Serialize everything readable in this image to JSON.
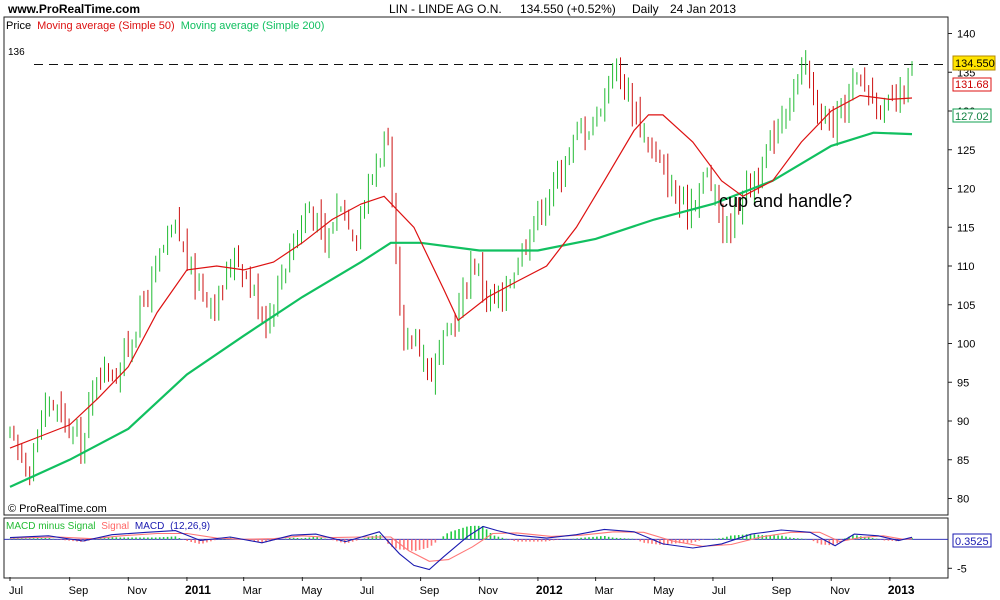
{
  "header": {
    "site": "www.ProRealTime.com",
    "title": "LIN - LINDE AG O.N.",
    "quote": "134.550 (+0.52%)",
    "period": "Daily",
    "date": "24 Jan 2013"
  },
  "legend_price": {
    "price": "Price",
    "ma50": "Moving average (Simple 50)",
    "ma200": "Moving average (Simple 200)"
  },
  "annotation": "cup and handle?",
  "copyright": "© ProRealTime.com",
  "resistance_label": "136",
  "legend_macd": {
    "hist": "MACD minus Signal",
    "signal": "Signal",
    "macd": "MACD",
    "params": "(12,26,9)"
  },
  "badges": {
    "last": "134.550",
    "ma50": "131.68",
    "ma200": "127.02",
    "macd": "0.3525"
  },
  "colors": {
    "up": "#22bb33",
    "down": "#cc1111",
    "ma50": "#dd1111",
    "ma200": "#11c060",
    "macd": "#1a1ab0",
    "signal": "#ff7777",
    "hist": "#22cc44",
    "last_badge": "#ffe400"
  },
  "chart_data": [
    {
      "type": "candlestick",
      "title": "LIN - LINDE AG O.N.",
      "x_labels": [
        "Jul",
        "Sep",
        "Nov",
        "2011",
        "Mar",
        "May",
        "Jul",
        "Sep",
        "Nov",
        "2012",
        "Mar",
        "May",
        "Jul",
        "Sep",
        "Nov",
        "2013"
      ],
      "ylim": [
        78,
        142
      ],
      "y_ticks": [
        140,
        135,
        130,
        125,
        120,
        115,
        110,
        105,
        100,
        95,
        90,
        85,
        80
      ],
      "resistance": 136,
      "price_path": [
        [
          "2010-07-01",
          88
        ],
        [
          "2010-07-20",
          84
        ],
        [
          "2010-08-10",
          93
        ],
        [
          "2010-08-25",
          90
        ],
        [
          "2010-09-15",
          87
        ],
        [
          "2010-09-30",
          97
        ],
        [
          "2010-10-20",
          96
        ],
        [
          "2010-11-10",
          103
        ],
        [
          "2010-12-01",
          110
        ],
        [
          "2010-12-20",
          115
        ],
        [
          "2011-01-10",
          108
        ],
        [
          "2011-02-01",
          105
        ],
        [
          "2011-02-20",
          112
        ],
        [
          "2011-03-10",
          107
        ],
        [
          "2011-03-25",
          103
        ],
        [
          "2011-04-20",
          113
        ],
        [
          "2011-05-10",
          118
        ],
        [
          "2011-05-25",
          112
        ],
        [
          "2011-06-10",
          119
        ],
        [
          "2011-06-25",
          114
        ],
        [
          "2011-07-15",
          123
        ],
        [
          "2011-07-28",
          127
        ],
        [
          "2011-08-05",
          112
        ],
        [
          "2011-08-15",
          98
        ],
        [
          "2011-08-25",
          102
        ],
        [
          "2011-09-10",
          96
        ],
        [
          "2011-09-25",
          100
        ],
        [
          "2011-10-10",
          104
        ],
        [
          "2011-10-25",
          111
        ],
        [
          "2011-11-10",
          106
        ],
        [
          "2011-11-25",
          105
        ],
        [
          "2011-12-10",
          111
        ],
        [
          "2012-01-01",
          117
        ],
        [
          "2012-01-20",
          121
        ],
        [
          "2012-02-10",
          127
        ],
        [
          "2012-03-01",
          129
        ],
        [
          "2012-03-20",
          136
        ],
        [
          "2012-04-05",
          132
        ],
        [
          "2012-04-20",
          127
        ],
        [
          "2012-05-10",
          122
        ],
        [
          "2012-06-01",
          117
        ],
        [
          "2012-06-25",
          122
        ],
        [
          "2012-07-15",
          114
        ],
        [
          "2012-08-01",
          120
        ],
        [
          "2012-08-20",
          122
        ],
        [
          "2012-09-10",
          130
        ],
        [
          "2012-09-25",
          133
        ],
        [
          "2012-10-05",
          136
        ],
        [
          "2012-10-20",
          129
        ],
        [
          "2012-11-05",
          128
        ],
        [
          "2012-11-25",
          134
        ],
        [
          "2012-12-10",
          133
        ],
        [
          "2012-12-25",
          130
        ],
        [
          "2013-01-10",
          131
        ],
        [
          "2013-01-24",
          134.55
        ]
      ],
      "ma50_path": [
        [
          "2010-07-01",
          86.5
        ],
        [
          "2010-08-01",
          88
        ],
        [
          "2010-09-01",
          89.5
        ],
        [
          "2010-10-01",
          93
        ],
        [
          "2010-11-01",
          97
        ],
        [
          "2010-12-01",
          104
        ],
        [
          "2011-01-01",
          109.5
        ],
        [
          "2011-02-01",
          110
        ],
        [
          "2011-03-01",
          109.5
        ],
        [
          "2011-04-01",
          110.5
        ],
        [
          "2011-05-01",
          113
        ],
        [
          "2011-06-01",
          116
        ],
        [
          "2011-07-01",
          118
        ],
        [
          "2011-07-25",
          119
        ],
        [
          "2011-08-25",
          115
        ],
        [
          "2011-09-25",
          107
        ],
        [
          "2011-10-10",
          103
        ],
        [
          "2011-11-10",
          106
        ],
        [
          "2011-12-10",
          108
        ],
        [
          "2012-01-10",
          110
        ],
        [
          "2012-02-10",
          115
        ],
        [
          "2012-03-10",
          121
        ],
        [
          "2012-04-10",
          127.5
        ],
        [
          "2012-04-25",
          129.5
        ],
        [
          "2012-05-10",
          129.5
        ],
        [
          "2012-06-10",
          126
        ],
        [
          "2012-07-10",
          121
        ],
        [
          "2012-08-01",
          119
        ],
        [
          "2012-09-01",
          121
        ],
        [
          "2012-10-01",
          126
        ],
        [
          "2012-11-01",
          130
        ],
        [
          "2012-12-01",
          132
        ],
        [
          "2013-01-01",
          131.5
        ],
        [
          "2013-01-24",
          131.68
        ]
      ],
      "ma200_path": [
        [
          "2010-07-01",
          81.5
        ],
        [
          "2010-09-01",
          85
        ],
        [
          "2010-11-01",
          89
        ],
        [
          "2011-01-01",
          96
        ],
        [
          "2011-03-01",
          101
        ],
        [
          "2011-05-01",
          106
        ],
        [
          "2011-07-01",
          110.5
        ],
        [
          "2011-08-01",
          113
        ],
        [
          "2011-09-01",
          113
        ],
        [
          "2011-11-01",
          112
        ],
        [
          "2012-01-01",
          112
        ],
        [
          "2012-03-01",
          113.5
        ],
        [
          "2012-05-01",
          116
        ],
        [
          "2012-07-01",
          118
        ],
        [
          "2012-09-01",
          121
        ],
        [
          "2012-11-01",
          125.5
        ],
        [
          "2012-12-15",
          127.2
        ],
        [
          "2013-01-24",
          127.02
        ]
      ],
      "last": 134.55,
      "ma50_last": 131.68,
      "ma200_last": 127.02
    },
    {
      "type": "macd",
      "title": "MACD (12,26,9)",
      "ylim": [
        -6.5,
        3.5
      ],
      "y_ticks": [
        -5
      ],
      "macd_path": [
        [
          "2010-07-01",
          0.3
        ],
        [
          "2010-08-10",
          0.6
        ],
        [
          "2010-09-15",
          -0.3
        ],
        [
          "2010-10-15",
          0.8
        ],
        [
          "2010-11-20",
          1.2
        ],
        [
          "2010-12-20",
          1.5
        ],
        [
          "2011-01-15",
          -0.2
        ],
        [
          "2011-02-15",
          0.4
        ],
        [
          "2011-03-20",
          -0.6
        ],
        [
          "2011-04-20",
          0.7
        ],
        [
          "2011-05-15",
          0.9
        ],
        [
          "2011-06-15",
          -0.4
        ],
        [
          "2011-07-20",
          1.3
        ],
        [
          "2011-08-10",
          -2.5
        ],
        [
          "2011-08-25",
          -4.5
        ],
        [
          "2011-09-10",
          -5.2
        ],
        [
          "2011-09-25",
          -3
        ],
        [
          "2011-10-20",
          0.5
        ],
        [
          "2011-11-05",
          2.2
        ],
        [
          "2011-11-20",
          1.5
        ],
        [
          "2011-12-10",
          0.7
        ],
        [
          "2012-01-10",
          0.2
        ],
        [
          "2012-02-10",
          0.8
        ],
        [
          "2012-03-10",
          1.7
        ],
        [
          "2012-04-10",
          1.3
        ],
        [
          "2012-05-10",
          -0.8
        ],
        [
          "2012-06-10",
          -1.5
        ],
        [
          "2012-07-10",
          -0.8
        ],
        [
          "2012-08-10",
          0.9
        ],
        [
          "2012-09-10",
          1.6
        ],
        [
          "2012-10-10",
          1.2
        ],
        [
          "2012-11-05",
          -1.1
        ],
        [
          "2012-11-25",
          0.9
        ],
        [
          "2012-12-20",
          0.6
        ],
        [
          "2013-01-10",
          -0.2
        ],
        [
          "2013-01-24",
          0.3525
        ]
      ],
      "signal_path": [
        [
          "2010-07-01",
          0.2
        ],
        [
          "2010-08-20",
          0.4
        ],
        [
          "2010-09-25",
          0.1
        ],
        [
          "2010-10-25",
          0.6
        ],
        [
          "2010-12-01",
          1
        ],
        [
          "2011-01-01",
          1
        ],
        [
          "2011-02-01",
          0.2
        ],
        [
          "2011-03-01",
          0
        ],
        [
          "2011-04-01",
          0.1
        ],
        [
          "2011-05-01",
          0.6
        ],
        [
          "2011-06-01",
          0.3
        ],
        [
          "2011-07-01",
          0.4
        ],
        [
          "2011-08-01",
          0.4
        ],
        [
          "2011-08-20",
          -2
        ],
        [
          "2011-09-10",
          -3.8
        ],
        [
          "2011-09-30",
          -3.5
        ],
        [
          "2011-10-25",
          -1.3
        ],
        [
          "2011-11-15",
          1
        ],
        [
          "2011-12-10",
          1.1
        ],
        [
          "2012-01-15",
          0.5
        ],
        [
          "2012-02-15",
          0.7
        ],
        [
          "2012-03-20",
          1.3
        ],
        [
          "2012-04-20",
          1.2
        ],
        [
          "2012-05-20",
          -0.3
        ],
        [
          "2012-06-20",
          -1.2
        ],
        [
          "2012-07-20",
          -0.9
        ],
        [
          "2012-08-20",
          0.4
        ],
        [
          "2012-09-20",
          1.2
        ],
        [
          "2012-10-20",
          1.2
        ],
        [
          "2012-11-10",
          -0.4
        ],
        [
          "2012-12-01",
          0.3
        ],
        [
          "2012-12-25",
          0.6
        ],
        [
          "2013-01-15",
          0
        ],
        [
          "2013-01-24",
          0.1
        ]
      ],
      "macd_last": 0.3525
    }
  ]
}
